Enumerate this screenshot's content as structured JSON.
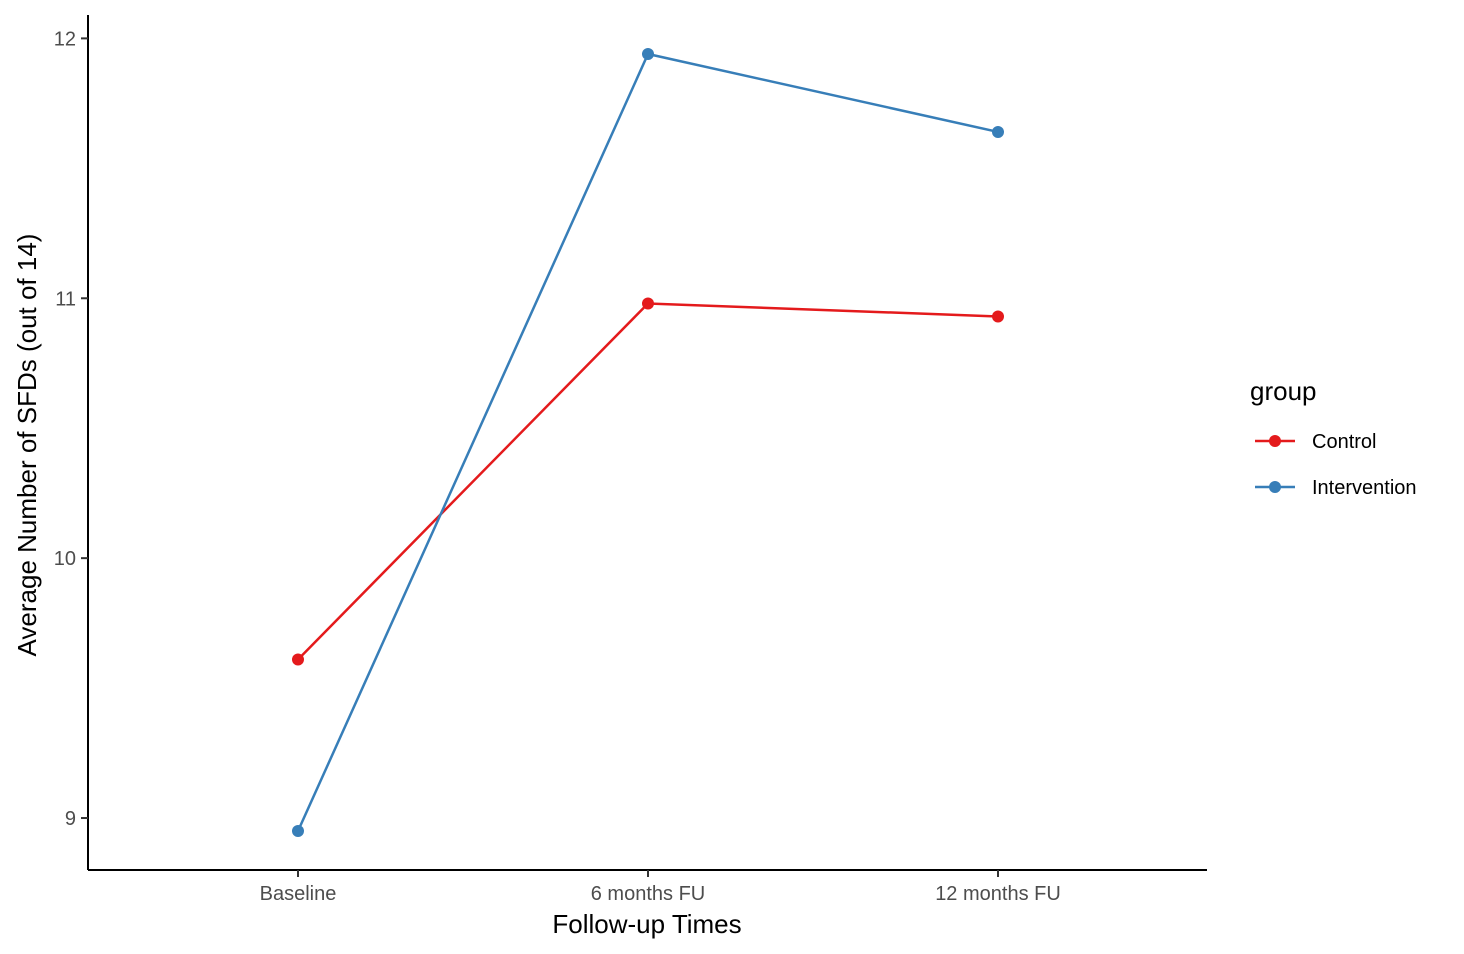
{
  "chart_data": {
    "type": "line",
    "title": "",
    "xlabel": "Follow-up Times",
    "ylabel": "Average Number of SFDs (out of 14)",
    "categories": [
      "Baseline",
      "6 months FU",
      "12 months FU"
    ],
    "y_ticks": [
      "9",
      "10",
      "11",
      "12"
    ],
    "ylim": [
      8.8,
      12.09
    ],
    "grid": false,
    "legend": {
      "title": "group",
      "placement": "right"
    },
    "series": [
      {
        "name": "Control",
        "color": "#E41A1C",
        "values": [
          9.61,
          10.98,
          10.93
        ]
      },
      {
        "name": "Intervention",
        "color": "#377EB8",
        "values": [
          8.95,
          11.94,
          11.64
        ]
      }
    ]
  }
}
